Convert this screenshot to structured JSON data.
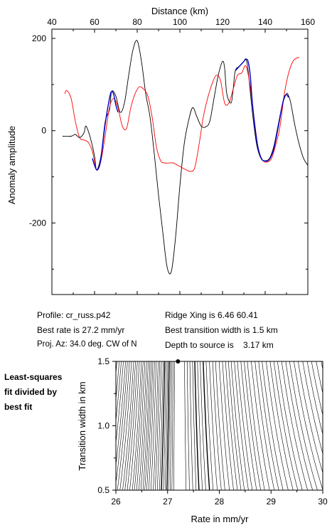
{
  "chart_data": [
    {
      "type": "line",
      "xlabel": "Distance (km)",
      "ylabel": "Anomaly amplitude",
      "xlim": [
        40,
        160
      ],
      "ylim": [
        -355,
        220
      ],
      "xticks": [
        "40",
        "60",
        "80",
        "100",
        "120",
        "140",
        "160"
      ],
      "yticks": [
        "200",
        "0",
        "-200"
      ],
      "x_axis_position": "top",
      "grid": false,
      "series": [
        {
          "color": "#000000",
          "x": [
            45,
            49,
            51,
            53,
            55,
            56,
            58,
            60,
            61,
            63,
            65,
            67,
            68,
            70,
            72,
            74,
            76,
            78,
            80,
            82,
            84,
            86,
            88,
            90,
            92,
            94,
            96,
            98,
            100,
            102,
            104,
            106,
            108,
            110,
            112,
            114,
            116,
            118,
            120,
            121,
            122,
            124,
            125,
            126,
            128,
            130,
            131,
            132,
            134,
            136,
            138,
            140,
            142,
            144,
            146,
            148,
            150,
            151,
            152,
            154,
            156,
            158,
            160
          ],
          "y": [
            -12,
            -12,
            -8,
            -15,
            -5,
            10,
            -15,
            -55,
            -85,
            -55,
            20,
            45,
            85,
            75,
            40,
            60,
            120,
            175,
            195,
            150,
            80,
            30,
            -50,
            -140,
            -220,
            -295,
            -305,
            -230,
            -120,
            -30,
            20,
            50,
            30,
            10,
            8,
            20,
            70,
            120,
            150,
            135,
            80,
            60,
            90,
            130,
            140,
            150,
            155,
            130,
            40,
            -30,
            -60,
            -65,
            -60,
            -35,
            10,
            55,
            80,
            75,
            60,
            10,
            -30,
            -60,
            -75
          ]
        },
        {
          "color": "#ff0000",
          "x": [
            46,
            47,
            49,
            51,
            53,
            55,
            57,
            59,
            61,
            63,
            65,
            67,
            69,
            71,
            73,
            75,
            77,
            79,
            81,
            83,
            85,
            87,
            89,
            91,
            93,
            95,
            97,
            99,
            101,
            103,
            105,
            107,
            109,
            111,
            113,
            115,
            117,
            119,
            121,
            123,
            125,
            127,
            129,
            131,
            133,
            135,
            137,
            139,
            141,
            143,
            145,
            147,
            149,
            151,
            153,
            155,
            156
          ],
          "y": [
            80,
            87,
            70,
            20,
            -15,
            -20,
            -25,
            -45,
            -85,
            -65,
            -10,
            50,
            70,
            50,
            10,
            5,
            50,
            80,
            95,
            90,
            75,
            30,
            -35,
            -65,
            -70,
            -70,
            -70,
            -75,
            -80,
            -85,
            -88,
            -80,
            -30,
            30,
            70,
            100,
            120,
            110,
            60,
            60,
            90,
            120,
            125,
            140,
            95,
            20,
            -45,
            -65,
            -68,
            -60,
            -30,
            10,
            80,
            125,
            150,
            158,
            158
          ]
        },
        {
          "color": "#0000cc",
          "x": [
            59,
            60,
            61,
            62,
            63,
            65,
            67,
            68,
            69,
            70,
            71
          ],
          "y": [
            -60,
            -75,
            -85,
            -80,
            -60,
            15,
            70,
            85,
            78,
            55,
            40
          ]
        },
        {
          "color": "#0000cc",
          "x": [
            126,
            128,
            130,
            131,
            132,
            133,
            134,
            136,
            138,
            140,
            142,
            144,
            146,
            148,
            149,
            150,
            151
          ],
          "y": [
            130,
            140,
            150,
            155,
            150,
            120,
            60,
            -20,
            -58,
            -66,
            -62,
            -40,
            5,
            55,
            73,
            78,
            72
          ]
        }
      ]
    },
    {
      "type": "contour",
      "xlabel": "Rate in mm/yr",
      "ylabel": "Transition width in km",
      "xlim": [
        26,
        30
      ],
      "ylim": [
        0.5,
        1.5
      ],
      "xticks": [
        "26",
        "27",
        "28",
        "29",
        "30"
      ],
      "yticks": [
        "0.5",
        "1.0",
        "1.5"
      ],
      "best_fit_marker": {
        "rate": 27.2,
        "width": 1.5
      },
      "bold_contours": [
        1.2,
        1.45
      ],
      "contour_levels": [
        1.03,
        1.06,
        1.1,
        1.15,
        1.2,
        1.27,
        1.35,
        1.45,
        1.56,
        1.7,
        1.85,
        2,
        2.2,
        2.4,
        2.6,
        2.8,
        3,
        3.25,
        3.5,
        3.8,
        4.1,
        4.4,
        4.8,
        5.2,
        5.6,
        6,
        6.5,
        7,
        7.5,
        8,
        8.6,
        9.2,
        9.8,
        10.5,
        11.2,
        12,
        12.8,
        13.6,
        14.5,
        15.5,
        16.5,
        17.5,
        18.5,
        19.5,
        20.5,
        21.5
      ]
    }
  ],
  "info": {
    "profile": "Profile: cr_russ.p42",
    "best_rate": "Best rate is 27.2 mm/yr",
    "proj_az": "Proj. Az: 34.0 deg. CW of N",
    "ridge_xing": "Ridge Xing is 6.46 60.41",
    "best_width": "Best transition width is 1.5 km",
    "depth": "Depth to source is    3.17 km"
  },
  "side_note": [
    "Least-squares",
    "fit divided by",
    "best fit"
  ]
}
